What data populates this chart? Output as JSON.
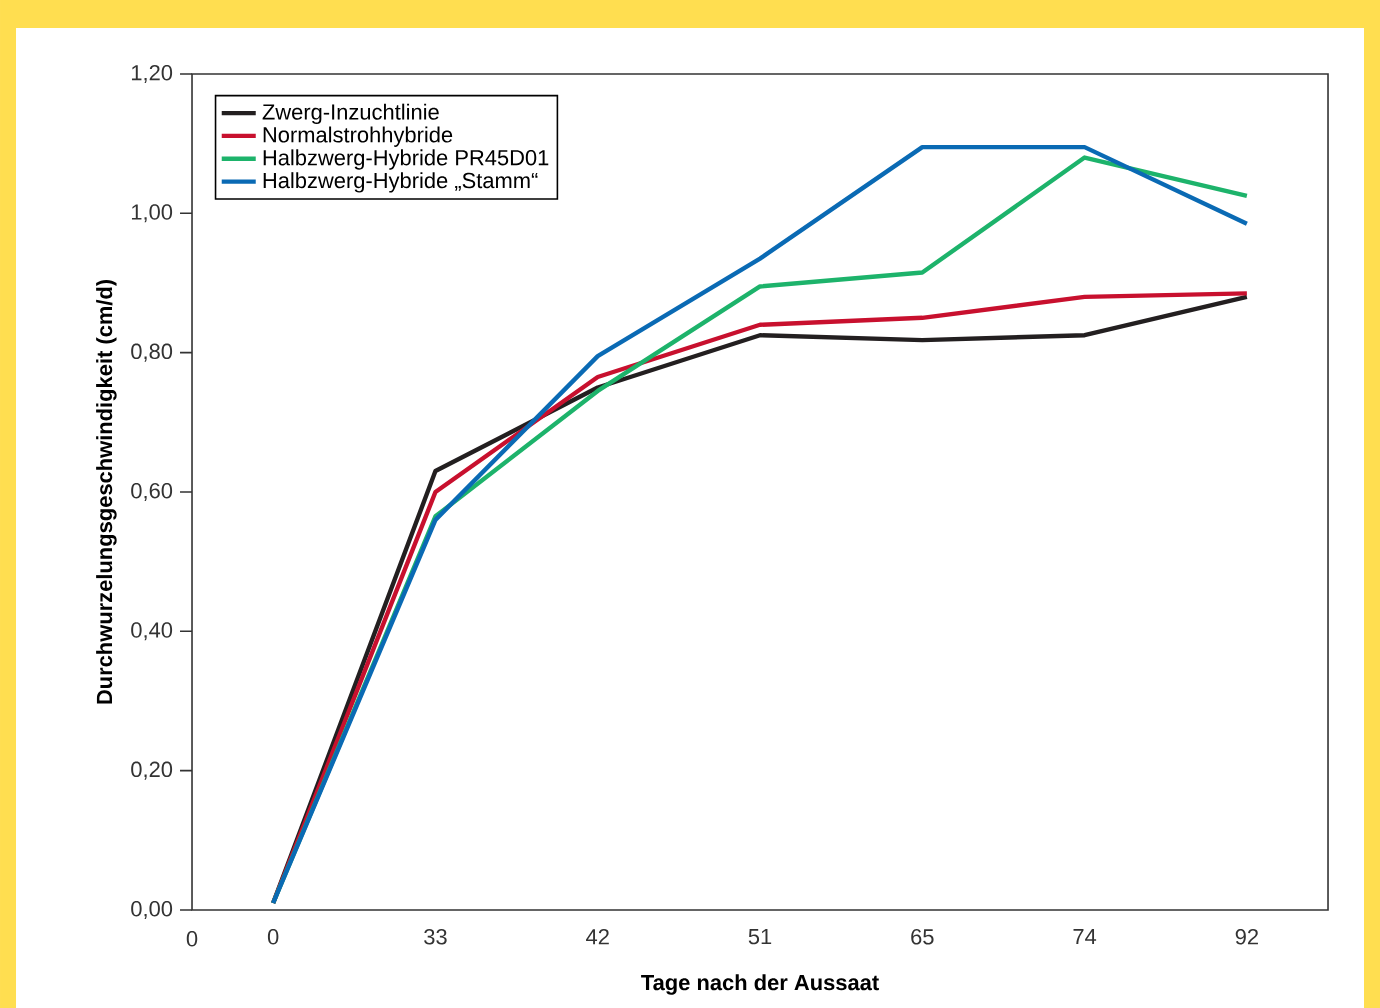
{
  "chart_data": {
    "type": "line",
    "xlabel": "Tage nach der Aussaat",
    "ylabel": "Durchwurzelungsgeschwindigkeit (cm/d)",
    "categories": [
      "0",
      "33",
      "42",
      "51",
      "65",
      "74",
      "92"
    ],
    "series": [
      {
        "name": "Zwerg-Inzuchtlinie",
        "color": "#231f20",
        "values": [
          0.01,
          0.63,
          0.75,
          0.825,
          0.818,
          0.825,
          0.88
        ]
      },
      {
        "name": "Normalstrohhybride",
        "color": "#c8102e",
        "values": [
          0.01,
          0.6,
          0.765,
          0.84,
          0.85,
          0.88,
          0.885
        ]
      },
      {
        "name": "Halbzwerg-Hybride PR45D01",
        "color": "#1db36b",
        "values": [
          0.01,
          0.565,
          0.745,
          0.895,
          0.915,
          1.08,
          1.025
        ]
      },
      {
        "name": "Halbzwerg-Hybride „Stamm“",
        "color": "#0a6ab4",
        "values": [
          0.01,
          0.56,
          0.795,
          0.935,
          1.095,
          1.095,
          0.985
        ]
      }
    ],
    "ylim": [
      0,
      1.2
    ],
    "yticks": [
      {
        "value": 0,
        "label": "0,00"
      },
      {
        "value": 0.2,
        "label": "0,20"
      },
      {
        "value": 0.4,
        "label": "0,40"
      },
      {
        "value": 0.6,
        "label": "0,60"
      },
      {
        "value": 0.8,
        "label": "0,80"
      },
      {
        "value": 1.0,
        "label": "1,00"
      },
      {
        "value": 1.2,
        "label": "1,20"
      }
    ],
    "annotations": [
      "0"
    ],
    "legend": "top left",
    "grid": false,
    "marker": "none",
    "line_style": "solid"
  }
}
